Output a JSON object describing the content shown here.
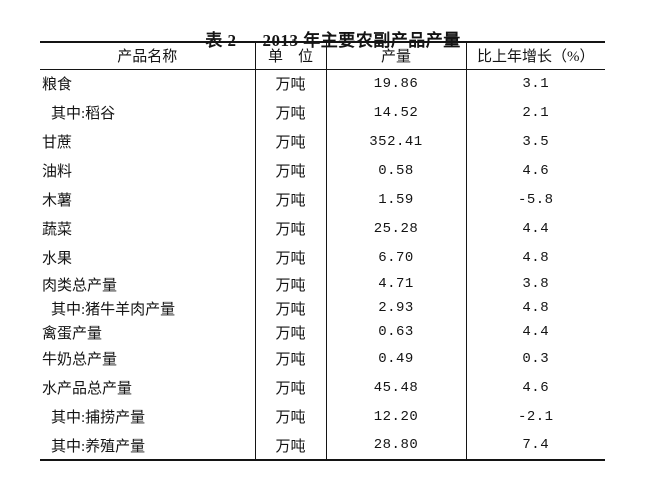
{
  "page": {
    "title_prefix": "表 2",
    "title_main": "2013 年主要农副产品产量"
  },
  "table": {
    "columns": [
      "产品名称",
      "单　位",
      "产量",
      "比上年增长（%）"
    ],
    "rows": [
      {
        "name": "粮食",
        "indent": false,
        "unit": "万吨",
        "output": "19.86",
        "growth": "3.1"
      },
      {
        "name": "其中:稻谷",
        "indent": true,
        "unit": "万吨",
        "output": "14.52",
        "growth": "2.1"
      },
      {
        "name": "甘蔗",
        "indent": false,
        "unit": "万吨",
        "output": "352.41",
        "growth": "3.5"
      },
      {
        "name": "油料",
        "indent": false,
        "unit": "万吨",
        "output": "0.58",
        "growth": "4.6"
      },
      {
        "name": "木薯",
        "indent": false,
        "unit": "万吨",
        "output": "1.59",
        "growth": "-5.8"
      },
      {
        "name": "蔬菜",
        "indent": false,
        "unit": "万吨",
        "output": "25.28",
        "growth": "4.4"
      },
      {
        "name": "水果",
        "indent": false,
        "unit": "万吨",
        "output": "6.70",
        "growth": "4.8"
      },
      {
        "name": "肉类总产量",
        "indent": false,
        "unit": "万吨",
        "output": "4.71",
        "growth": "3.8"
      },
      {
        "name": "其中:猪牛羊肉产量",
        "indent": true,
        "unit": "万吨",
        "output": "2.93",
        "growth": "4.8"
      },
      {
        "name": "禽蛋产量",
        "indent": false,
        "unit": "万吨",
        "output": "0.63",
        "growth": "4.4"
      },
      {
        "name": "牛奶总产量",
        "indent": false,
        "unit": "万吨",
        "output": "0.49",
        "growth": "0.3"
      },
      {
        "name": "水产品总产量",
        "indent": false,
        "unit": "万吨",
        "output": "45.48",
        "growth": "4.6"
      },
      {
        "name": "其中:捕捞产量",
        "indent": true,
        "unit": "万吨",
        "output": "12.20",
        "growth": "-2.1"
      },
      {
        "name": "其中:养殖产量",
        "indent": true,
        "unit": "万吨",
        "output": "28.80",
        "growth": "7.4"
      }
    ]
  },
  "colors": {
    "text": "#141414",
    "border": "#141414",
    "background": "#ffffff"
  }
}
